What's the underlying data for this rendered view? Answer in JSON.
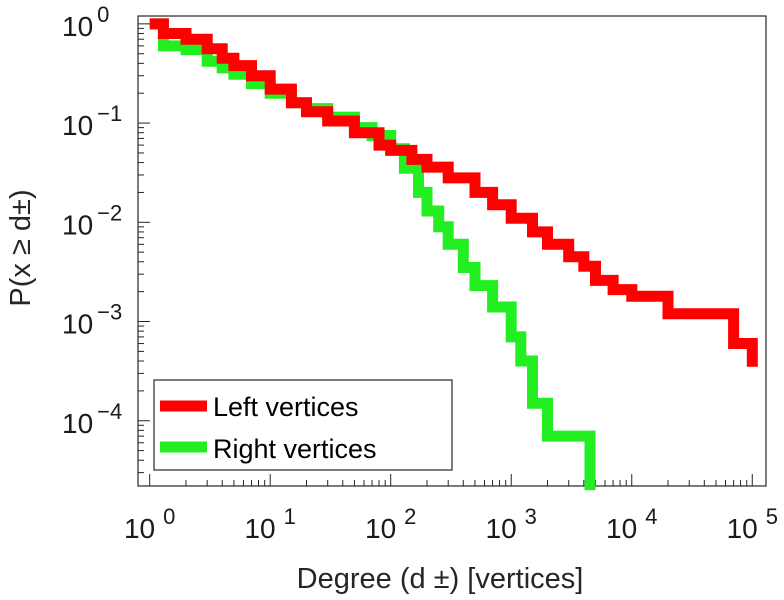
{
  "chart_data": {
    "type": "line",
    "xscale": "log",
    "yscale": "log",
    "xlim": [
      0.8,
      130000
    ],
    "ylim": [
      2.2e-05,
      1.2
    ],
    "xticks": [
      1,
      10,
      100,
      1000,
      10000,
      100000
    ],
    "yticks": [
      1,
      0.1,
      0.01,
      0.001,
      0.0001
    ],
    "xlabel": "Degree (d ±) [vertices]",
    "ylabel": "P(x ≥ d±)",
    "legend_position": "bottom-left",
    "series": [
      {
        "name": "Left vertices",
        "color": "#ff0000",
        "x": [
          1,
          1.3,
          2,
          3,
          4,
          5,
          7,
          10,
          15,
          20,
          30,
          50,
          80,
          100,
          150,
          200,
          300,
          500,
          700,
          1000,
          1500,
          2000,
          3000,
          4000,
          5000,
          7000,
          10000,
          20000,
          30000,
          50000,
          70000,
          100000
        ],
        "y": [
          1,
          0.8,
          0.7,
          0.56,
          0.45,
          0.38,
          0.3,
          0.22,
          0.16,
          0.13,
          0.105,
          0.08,
          0.06,
          0.053,
          0.043,
          0.036,
          0.028,
          0.02,
          0.015,
          0.011,
          0.008,
          0.006,
          0.0045,
          0.0036,
          0.0026,
          0.0021,
          0.0018,
          0.0012,
          0.0012,
          0.0012,
          0.0006,
          0.00035
        ]
      },
      {
        "name": "Right vertices",
        "color": "#22ee22",
        "x": [
          1,
          1.3,
          2,
          3,
          4,
          5,
          7,
          10,
          15,
          20,
          30,
          50,
          70,
          100,
          130,
          170,
          200,
          250,
          300,
          400,
          500,
          700,
          1000,
          1200,
          1500,
          2000,
          3000,
          4400,
          4500
        ],
        "y": [
          1,
          0.6,
          0.55,
          0.42,
          0.36,
          0.31,
          0.25,
          0.2,
          0.16,
          0.14,
          0.115,
          0.09,
          0.075,
          0.055,
          0.035,
          0.02,
          0.013,
          0.009,
          0.006,
          0.0035,
          0.0023,
          0.0014,
          0.0007,
          0.0004,
          0.00015,
          7e-05,
          7e-05,
          7e-05,
          2e-05
        ]
      }
    ]
  }
}
